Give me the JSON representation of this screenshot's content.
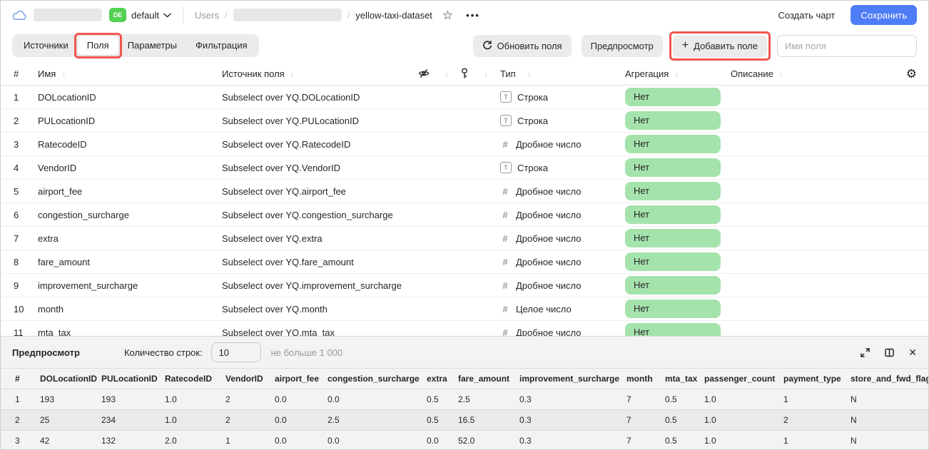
{
  "colors": {
    "accent_blue": "#4e7df7",
    "badge_green": "#53d153",
    "pill_green": "#a5e3ad",
    "annotation_red": "#f1564e"
  },
  "topbar": {
    "workspace_badge": "DE",
    "workspace_name": "default",
    "breadcrumb_root": "Users",
    "breadcrumb_sep1": "/",
    "breadcrumb_sep2": "/",
    "breadcrumb_current": "yellow-taxi-dataset",
    "star_icon": "☆",
    "more_icon": "•••",
    "create_chart_label": "Создать чарт",
    "save_label": "Сохранить"
  },
  "toolbar": {
    "tabs": [
      {
        "label": "Источники",
        "active": false,
        "annotated": false
      },
      {
        "label": "Поля",
        "active": true,
        "annotated": true
      },
      {
        "label": "Параметры",
        "active": false,
        "annotated": false
      },
      {
        "label": "Фильтрация",
        "active": false,
        "annotated": false
      }
    ],
    "refresh_fields_label": "Обновить поля",
    "preview_label": "Предпросмотр",
    "add_field_plus": "+",
    "add_field_label": "Добавить поле",
    "field_name_placeholder": "Имя поля"
  },
  "fields_table": {
    "headers": {
      "num": "#",
      "name": "Имя",
      "source": "Источник поля",
      "type": "Тип",
      "aggregation": "Агрегация",
      "description": "Описание"
    },
    "sort_arrow": "↓",
    "gear_icon": "⚙",
    "rows": [
      {
        "num": "1",
        "name": "DOLocationID",
        "source": "Subselect over YQ.DOLocationID",
        "type_kind": "string",
        "type": "Строка",
        "aggregation": "Нет"
      },
      {
        "num": "2",
        "name": "PULocationID",
        "source": "Subselect over YQ.PULocationID",
        "type_kind": "string",
        "type": "Строка",
        "aggregation": "Нет"
      },
      {
        "num": "3",
        "name": "RatecodeID",
        "source": "Subselect over YQ.RatecodeID",
        "type_kind": "number",
        "type": "Дробное число",
        "aggregation": "Нет"
      },
      {
        "num": "4",
        "name": "VendorID",
        "source": "Subselect over YQ.VendorID",
        "type_kind": "string",
        "type": "Строка",
        "aggregation": "Нет"
      },
      {
        "num": "5",
        "name": "airport_fee",
        "source": "Subselect over YQ.airport_fee",
        "type_kind": "number",
        "type": "Дробное число",
        "aggregation": "Нет"
      },
      {
        "num": "6",
        "name": "congestion_surcharge",
        "source": "Subselect over YQ.congestion_surcharge",
        "type_kind": "number",
        "type": "Дробное число",
        "aggregation": "Нет"
      },
      {
        "num": "7",
        "name": "extra",
        "source": "Subselect over YQ.extra",
        "type_kind": "number",
        "type": "Дробное число",
        "aggregation": "Нет"
      },
      {
        "num": "8",
        "name": "fare_amount",
        "source": "Subselect over YQ.fare_amount",
        "type_kind": "number",
        "type": "Дробное число",
        "aggregation": "Нет"
      },
      {
        "num": "9",
        "name": "improvement_surcharge",
        "source": "Subselect over YQ.improvement_surcharge",
        "type_kind": "number",
        "type": "Дробное число",
        "aggregation": "Нет"
      },
      {
        "num": "10",
        "name": "month",
        "source": "Subselect over YQ.month",
        "type_kind": "number",
        "type": "Целое число",
        "aggregation": "Нет"
      },
      {
        "num": "11",
        "name": "mta_tax",
        "source": "Subselect over YQ.mta_tax",
        "type_kind": "number",
        "type": "Дробное число",
        "aggregation": "Нет"
      }
    ]
  },
  "preview": {
    "title": "Предпросмотр",
    "row_count_label": "Количество строк:",
    "row_count_value": "10",
    "row_count_hint": "не больше 1 000",
    "close_icon": "✕",
    "columns": [
      "#",
      "DOLocationID",
      "PULocationID",
      "RatecodeID",
      "VendorID",
      "airport_fee",
      "congestion_surcharge",
      "extra",
      "fare_amount",
      "improvement_surcharge",
      "month",
      "mta_tax",
      "passenger_count",
      "payment_type",
      "store_and_fwd_flag"
    ],
    "rows": [
      [
        "1",
        "193",
        "193",
        "1.0",
        "2",
        "0.0",
        "0.0",
        "0.5",
        "2.5",
        "0.3",
        "7",
        "0.5",
        "1.0",
        "1",
        "N"
      ],
      [
        "2",
        "25",
        "234",
        "1.0",
        "2",
        "0.0",
        "2.5",
        "0.5",
        "16.5",
        "0.3",
        "7",
        "0.5",
        "1.0",
        "2",
        "N"
      ],
      [
        "3",
        "42",
        "132",
        "2.0",
        "1",
        "0.0",
        "0.0",
        "0.0",
        "52.0",
        "0.3",
        "7",
        "0.5",
        "1.0",
        "1",
        "N"
      ]
    ]
  }
}
